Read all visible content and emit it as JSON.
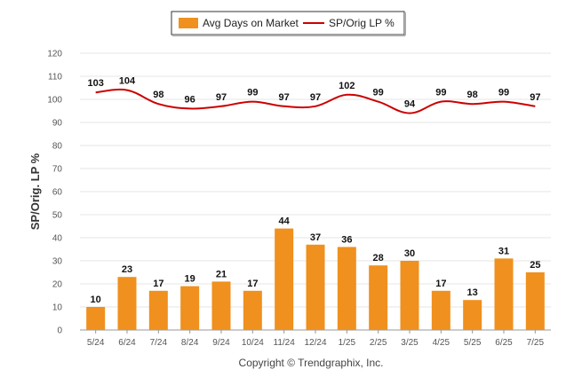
{
  "chart_data": {
    "type": "bar",
    "categories": [
      "5/24",
      "6/24",
      "7/24",
      "8/24",
      "9/24",
      "10/24",
      "11/24",
      "12/24",
      "1/25",
      "2/25",
      "3/25",
      "4/25",
      "5/25",
      "6/25",
      "7/25"
    ],
    "series": [
      {
        "name": "Avg Days on Market",
        "type": "bar",
        "color": "#F0901E",
        "values": [
          10,
          23,
          17,
          19,
          21,
          17,
          44,
          37,
          36,
          28,
          30,
          17,
          13,
          31,
          25
        ]
      },
      {
        "name": "SP/Orig LP %",
        "type": "line",
        "color": "#CC0000",
        "values": [
          103,
          104,
          98,
          96,
          97,
          99,
          97,
          97,
          102,
          99,
          94,
          99,
          98,
          99,
          97
        ]
      }
    ],
    "ylabel": "SP/Orig. LP %",
    "ylim": [
      0,
      120
    ],
    "yticks": [
      "0",
      "10",
      "20",
      "30",
      "40",
      "50",
      "60",
      "70",
      "80",
      "90",
      "100",
      "110",
      "120"
    ],
    "grid": true,
    "legend_position": "top-center"
  },
  "footer": {
    "copyright": "Copyright © Trendgraphix, Inc."
  }
}
